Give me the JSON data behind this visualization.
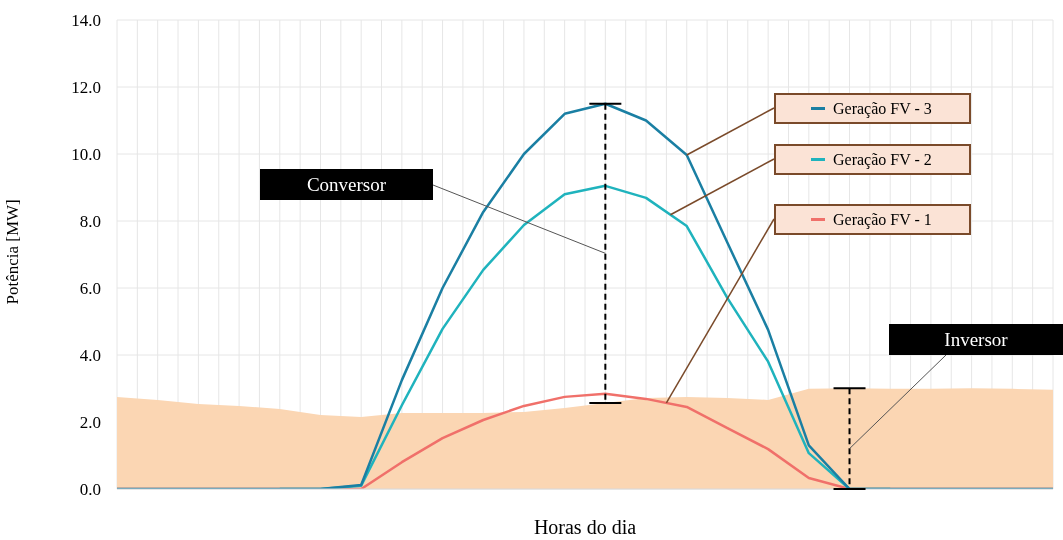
{
  "chart_data": {
    "type": "line",
    "xlabel": "Horas do dia",
    "ylabel": "Potência [MW]",
    "categories": [
      null,
      null,
      null,
      null,
      null,
      null,
      null,
      null,
      null,
      null,
      null,
      null,
      null,
      null,
      null,
      null,
      null,
      null,
      null,
      null,
      null,
      null,
      null,
      null
    ],
    "series": [
      {
        "type": "area",
        "color": "#fbd6b3",
        "values": [
          2.75,
          2.66,
          2.54,
          2.48,
          2.39,
          2.21,
          2.15,
          2.27,
          2.27,
          2.27,
          2.3,
          2.42,
          2.57,
          2.72,
          2.75,
          2.72,
          2.66,
          2.99,
          3.01,
          2.99,
          2.99,
          3.01,
          2.99,
          2.96
        ]
      },
      {
        "name": "Geração FV - 1",
        "color": "#f0706a",
        "values": [
          0,
          0,
          0,
          0,
          0,
          0,
          0,
          0.8,
          1.52,
          2.06,
          2.48,
          2.75,
          2.84,
          2.69,
          2.45,
          1.82,
          1.19,
          0.33,
          0,
          0,
          0,
          0,
          0,
          0
        ]
      },
      {
        "name": "Geração FV - 2",
        "color": "#1fb3bd",
        "values": [
          null,
          null,
          null,
          null,
          0,
          0,
          0.1,
          2.5,
          4.78,
          6.54,
          7.88,
          8.8,
          9.05,
          8.69,
          7.85,
          5.7,
          3.8,
          1.07,
          0,
          0,
          null,
          null,
          null,
          null
        ]
      },
      {
        "name": "Geração FV - 3",
        "color": "#1a7fa3",
        "values": [
          0,
          0,
          0,
          0,
          0,
          0,
          0.12,
          3.25,
          6.0,
          8.27,
          10.0,
          11.2,
          11.5,
          11.0,
          9.97,
          7.35,
          4.75,
          1.3,
          0,
          0,
          0,
          0,
          0,
          0
        ]
      }
    ],
    "ylim": [
      0,
      14
    ],
    "yticks": [
      {
        "value": 0,
        "label": "0.0"
      },
      {
        "value": 2,
        "label": "2.0"
      },
      {
        "value": 4,
        "label": "4.0"
      },
      {
        "value": 6,
        "label": "6.0"
      },
      {
        "value": 8,
        "label": "8.0"
      },
      {
        "value": 10,
        "label": "10.0"
      },
      {
        "value": 12,
        "label": "12.0"
      },
      {
        "value": 14,
        "label": "14.0"
      }
    ],
    "grid": true,
    "legend": "top right",
    "marker": "none",
    "line_style": "solid",
    "annotations": [
      "Conversor",
      "Inversor"
    ]
  }
}
